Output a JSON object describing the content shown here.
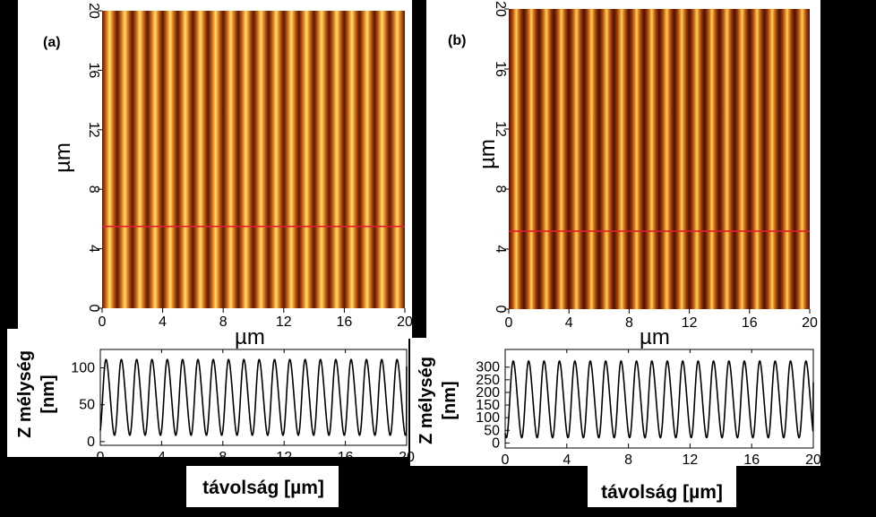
{
  "chart_data": [
    {
      "panel": "(a)",
      "type": "heatmap",
      "xlabel": "µm",
      "ylabel": "µm",
      "xlim": [
        0,
        20
      ],
      "ylim": [
        0,
        20
      ],
      "xticks": [
        "0",
        "4",
        "8",
        "12",
        "16",
        "20"
      ],
      "yticks": [
        "0",
        "4",
        "8",
        "12",
        "16",
        "20"
      ],
      "stripe_count": 20,
      "stripe_period_um": 1.0,
      "line_profile_y_um": 5.5,
      "colors": {
        "dark": "#5a1a05",
        "bright": "#ffe07a",
        "profile_line": "#e0202a"
      }
    },
    {
      "panel": "(a) profile",
      "type": "line",
      "xlabel": "távolság [µm]",
      "ylabel": "Z mélység [nm]",
      "xlim": [
        0,
        20
      ],
      "ylim": [
        -5,
        125
      ],
      "xticks": [
        "0",
        "4",
        "8",
        "12",
        "16",
        "20"
      ],
      "yticks": [
        "0",
        "50",
        "100"
      ],
      "series": [
        {
          "period_um": 1.0,
          "min_nm": 5,
          "max_nm": 115,
          "x_start_um": 0.15,
          "end_value_nm": 102
        }
      ]
    },
    {
      "panel": "(b)",
      "type": "heatmap",
      "xlabel": "µm",
      "ylabel": "µm",
      "xlim": [
        0,
        20
      ],
      "ylim": [
        0,
        20
      ],
      "xticks": [
        "0",
        "4",
        "8",
        "12",
        "16",
        "20"
      ],
      "yticks": [
        "0",
        "4",
        "8",
        "12",
        "16",
        "20"
      ],
      "stripe_count": 20,
      "stripe_period_um": 1.0,
      "line_profile_y_um": 5.2,
      "colors": {
        "dark": "#4a1204",
        "bright": "#ffd860",
        "profile_line": "#e0202a"
      }
    },
    {
      "panel": "(b) profile",
      "type": "line",
      "xlabel": "távolság [µm]",
      "ylabel": "Z mélység [nm]",
      "xlim": [
        0,
        20
      ],
      "ylim": [
        -20,
        370
      ],
      "xticks": [
        "0",
        "4",
        "8",
        "12",
        "16",
        "20"
      ],
      "yticks": [
        "0",
        "50",
        "100",
        "150",
        "200",
        "250",
        "300"
      ],
      "series": [
        {
          "period_um": 1.0,
          "min_nm": 10,
          "max_nm": 335,
          "x_start_um": 0.3,
          "end_value_nm": 240
        }
      ]
    }
  ],
  "labels": {
    "panel_a": "(a)",
    "panel_b": "(b)",
    "map_axis_unit": "µm",
    "profile_xlabel": "távolság [µm]",
    "profile_ylabel_top": "Z mélység",
    "profile_ylabel_bottom": "[nm]"
  }
}
